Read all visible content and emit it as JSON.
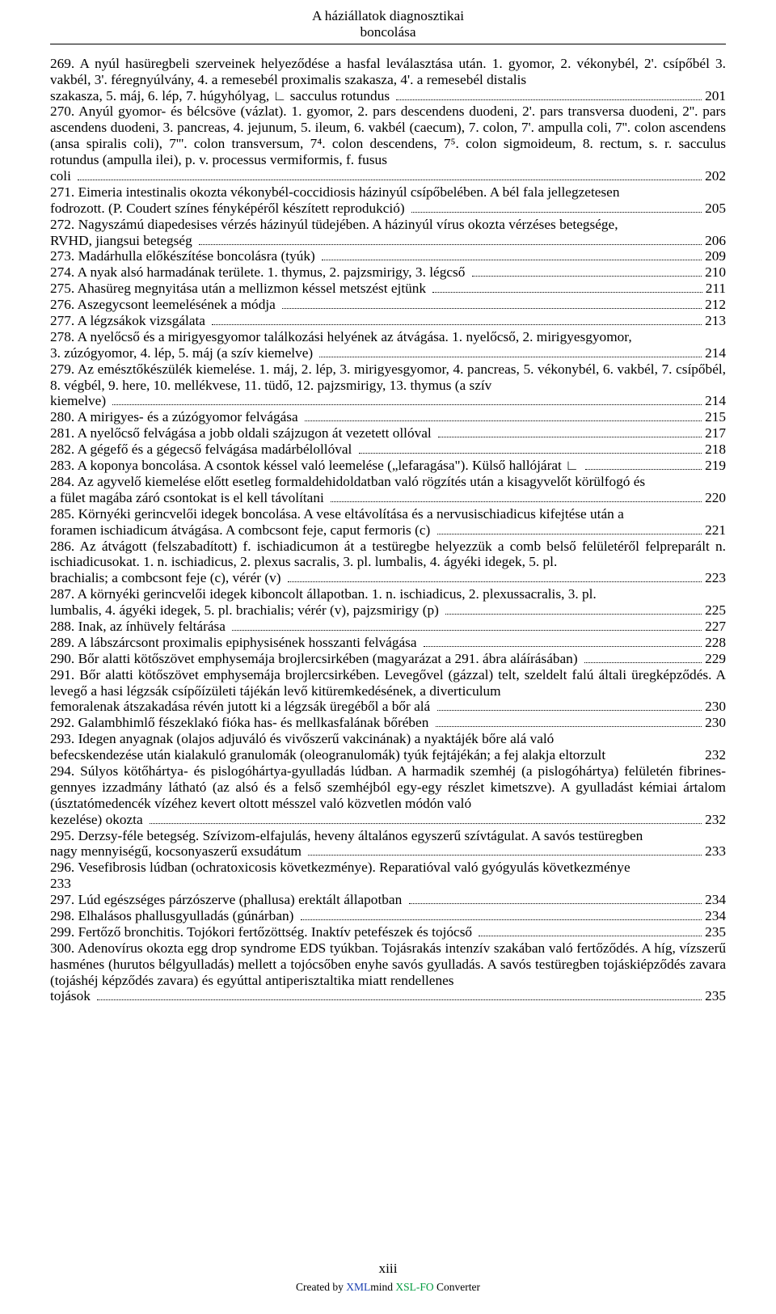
{
  "header": {
    "line1": "A háziállatok diagnosztikai",
    "line2": "boncolása"
  },
  "entries": [
    {
      "t": "plain",
      "text": "269. A nyúl hasüregbeli szerveinek helyeződése a hasfal leválasztása után. 1. gyomor, 2. vékonybél, 2'. csípőbél 3. vakbél, 3'. féregnyúlvány, 4. a remesebél proximalis szakasza, 4'. a remesebél distalis"
    },
    {
      "t": "dots",
      "text": "szakasza, 5. máj, 6. lép, 7. húgyhólyag, ∟ sacculus rotundus",
      "pg": "201"
    },
    {
      "t": "plain",
      "text": "270. Anyúl gyomor- és bélcsöve (vázlat). 1. gyomor, 2. pars descendens duodeni, 2'. pars transversa duodeni, 2''. pars ascendens duodeni, 3. pancreas, 4. jejunum, 5. ileum, 6. vakbél (caecum), 7. colon, 7'. ampulla coli, 7''. colon ascendens (ansa spiralis coli), 7'''. colon transversum, 7⁴. colon descendens, 7⁵. colon sigmoideum, 8. rectum, s. r. sacculus rotundus (ampulla ilei), p. v. processus vermiformis, f. fusus"
    },
    {
      "t": "dots",
      "text": "coli",
      "pg": "202"
    },
    {
      "t": "plain",
      "text": "271. Eimeria intestinalis okozta vékonybél-coccidiosis házinyúl csípőbelében. A bél fala jellegzetesen"
    },
    {
      "t": "dots",
      "text": "fodrozott. (P. Coudert színes fényképéről készített reprodukció)",
      "pg": "205"
    },
    {
      "t": "plain",
      "text": "272. Nagyszámú diapedesises vérzés házinyúl tüdejében. A házinyúl vírus okozta vérzéses betegsége,"
    },
    {
      "t": "dots",
      "text": "RVHD, jiangsui betegség",
      "pg": "206"
    },
    {
      "t": "dots",
      "text": "273. Madárhulla előkészítése boncolásra (tyúk)",
      "pg": "209"
    },
    {
      "t": "dots",
      "text": "274. A nyak alsó harmadának területe. 1. thymus, 2. pajzsmirigy, 3. légcső",
      "pg": "210"
    },
    {
      "t": "dots",
      "text": "275. Ahasüreg megnyitása után a mellizmon késsel metszést ejtünk",
      "pg": "211"
    },
    {
      "t": "dots",
      "text": "276. Aszegycsont leemelésének a módja",
      "pg": "212"
    },
    {
      "t": "dots",
      "text": "277. A légzsákok vizsgálata",
      "pg": "213"
    },
    {
      "t": "plain",
      "text": "278. A nyelőcső és a mirigyesgyomor találkozási helyének az átvágása. 1. nyelőcső, 2. mirigyesgyomor,"
    },
    {
      "t": "dots",
      "text": "3. zúzógyomor, 4. lép, 5. máj (a szív kiemelve)",
      "pg": "214"
    },
    {
      "t": "plain",
      "text": "279. Az emésztőkészülék kiemelése. 1. máj, 2. lép, 3. mirigyesgyomor, 4. pancreas, 5. vékonybél, 6. vakbél, 7. csípőbél, 8. végbél, 9. here, 10. mellékvese, 11. tüdő, 12. pajzsmirigy, 13. thymus (a szív"
    },
    {
      "t": "dots",
      "text": "kiemelve)",
      "pg": "214"
    },
    {
      "t": "dots",
      "text": "280. A mirigyes- és a zúzógyomor felvágása",
      "pg": "215"
    },
    {
      "t": "dots",
      "text": "281. A nyelőcső felvágása a jobb oldali szájzugon át vezetett ollóval",
      "pg": "217"
    },
    {
      "t": "dots",
      "text": "282. A gégefő és a gégecső felvágása madárbélollóval",
      "pg": "218"
    },
    {
      "t": "dots",
      "text": "283. A koponya boncolása. A csontok késsel való leemelése („lefaragása\"). Külső hallójárat ∟",
      "pg": "219"
    },
    {
      "t": "plain",
      "text": "284. Az agyvelő kiemelése előtt esetleg formaldehidoldatban való rögzítés után a kisagyvelőt körülfogó és"
    },
    {
      "t": "dots",
      "text": "a fület magába záró csontokat is el kell távolítani",
      "pg": "220"
    },
    {
      "t": "plain",
      "text": "285. Környéki gerincvelői idegek boncolása. A vese eltávolítása és a nervusischiadicus kifejtése után a"
    },
    {
      "t": "dots",
      "text": "foramen ischiadicum átvágása. A combcsont feje, caput fermoris (c)",
      "pg": "221"
    },
    {
      "t": "plain",
      "text": "286. Az átvágott (felszabadított) f. ischiadicumon át a testüregbe helyezzük a comb belső felületéről felpreparált n. ischiadicusokat. 1. n. ischiadicus, 2. plexus sacralis, 3. pl. lumbalis, 4. ágyéki idegek, 5. pl."
    },
    {
      "t": "dots",
      "text": "brachialis; a combcsont feje (c), vérér (v)",
      "pg": "223"
    },
    {
      "t": "plain",
      "text": "287. A környéki gerincvelői idegek kiboncolt állapotban. 1. n. ischiadicus, 2. plexussacralis, 3. pl."
    },
    {
      "t": "dots",
      "text": "lumbalis, 4. ágyéki idegek, 5. pl. brachialis; vérér (v), pajzsmirigy (p)",
      "pg": "225"
    },
    {
      "t": "dots",
      "text": "288. Inak, az ínhüvely feltárása",
      "pg": "227"
    },
    {
      "t": "dots",
      "text": "289. A lábszárcsont proximalis epiphysisének hosszanti felvágása",
      "pg": "228"
    },
    {
      "t": "dots",
      "text": "290. Bőr alatti kötőszövet emphysemája brojlercsirkében (magyarázat a 291. ábra aláírásában)",
      "pg": "229"
    },
    {
      "t": "plain",
      "text": "291. Bőr alatti kötőszövet emphysemája brojlercsirkében. Levegővel (gázzal) telt, szeldelt falú általi üregképződés. A levegő a hasi légzsák csípőízületi tájékán levő kitüremkedésének, a diverticulum"
    },
    {
      "t": "dots",
      "text": "femoralenak átszakadása révén jutott ki a légzsák üregéből a bőr alá",
      "pg": "230"
    },
    {
      "t": "dots",
      "text": "292. Galambhimlő fészeklakó fióka has- és mellkasfalának bőrében",
      "pg": "230"
    },
    {
      "t": "plain",
      "text": "293. Idegen anyagnak (olajos adjuváló és vivőszerű vakcinának) a nyaktájék bőre alá való"
    },
    {
      "t": "plainpg",
      "text": "befecskendezése után kialakuló granulomák (oleogranulomák) tyúk fejtájékán; a fej alakja eltorzult",
      "pg": "232"
    },
    {
      "t": "plain",
      "text": "294. Súlyos kötőhártya- és pislogóhártya-gyulladás lúdban. A harmadik szemhéj (a pislogóhártya) felületén fibrines-gennyes izzadmány látható (az alsó és a felső szemhéjból egy-egy részlet kimetszve). A gyulladást kémiai ártalom (úsztatómedencék vízéhez kevert oltott mésszel való közvetlen módón való"
    },
    {
      "t": "dots",
      "text": "kezelése) okozta",
      "pg": "232"
    },
    {
      "t": "plain",
      "text": "295. Derzsy-féle betegség. Szívizom-elfajulás, heveny általános egyszerű szívtágulat. A savós testüregben"
    },
    {
      "t": "dots",
      "text": "nagy mennyiségű, kocsonyaszerű exsudátum",
      "pg": "233"
    },
    {
      "t": "plainpg",
      "text": "296. Vesefibrosis lúdban (ochratoxicosis következménye). Reparatióval való gyógyulás következménye",
      "pg": ""
    },
    {
      "t": "plain",
      "text": "233"
    },
    {
      "t": "dots",
      "text": "297. Lúd egészséges párzószerve (phallusa) erektált állapotban",
      "pg": "234"
    },
    {
      "t": "dots",
      "text": "298. Elhalásos phallusgyulladás (gúnárban)",
      "pg": "234"
    },
    {
      "t": "dots",
      "text": "299. Fertőző bronchitis. Tojókori fertőzöttség. Inaktív petefészek és tojócső",
      "pg": "235"
    },
    {
      "t": "plain",
      "text": "300. Adenovírus okozta egg drop syndrome EDS tyúkban. Tojásrakás intenzív szakában való fertőződés. A híg, vízszerű hasménes (hurutos bélgyulladás) mellett a tojócsőben enyhe savós gyulladás. A savós testüregben tojáskiépződés zavara (tojáshéj képződés zavara) és egyúttal antiperisztaltika miatt rendellenes"
    },
    {
      "t": "dots",
      "text": "tojások",
      "pg": "235"
    }
  ],
  "footer": {
    "roman": "xiii",
    "credit_prefix": "Created by ",
    "credit_xml": "XML",
    "credit_mind": "mind ",
    "credit_fo": "XSL-FO",
    "credit_suffix": " Converter"
  },
  "colors": {
    "xml": "#1a3fb0",
    "fo": "#009a3e"
  }
}
